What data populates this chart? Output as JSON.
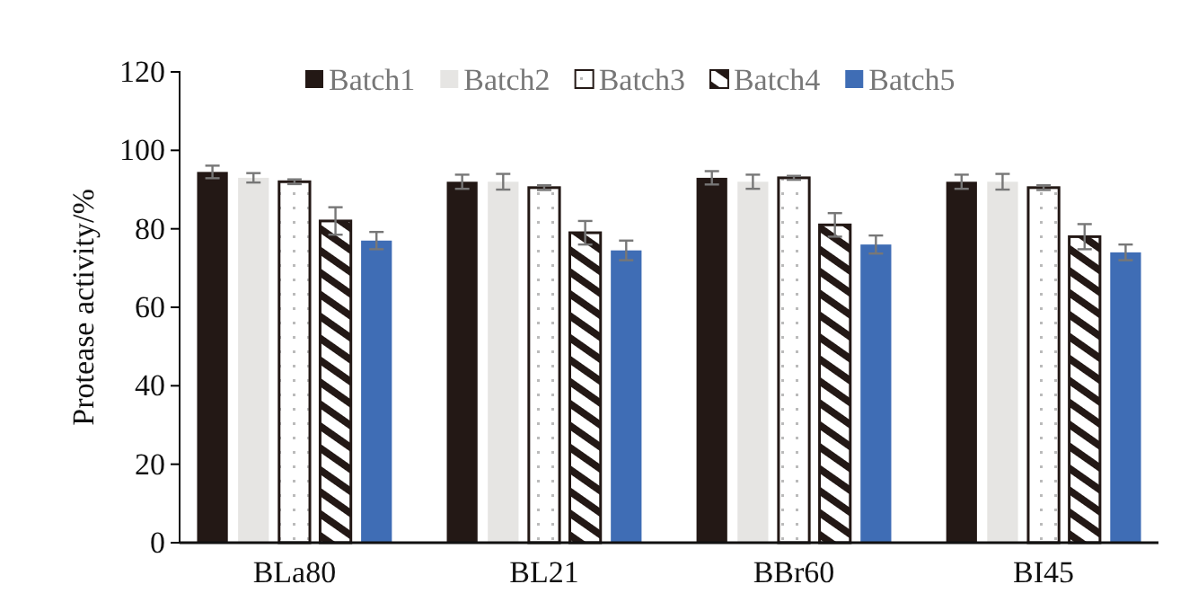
{
  "chart_data": {
    "type": "bar",
    "ylabel": "Protease activity/%",
    "categories": [
      "BLa80",
      "BL21",
      "BBr60",
      "BI45"
    ],
    "series": [
      {
        "name": "Batch1",
        "color": "#231815",
        "values": [
          94.5,
          92,
          93,
          92
        ],
        "errors": [
          1.6,
          1.8,
          1.7,
          1.8
        ]
      },
      {
        "name": "Batch2",
        "color": "#e6e5e3",
        "values": [
          93,
          92,
          92,
          92
        ],
        "errors": [
          1.2,
          2,
          1.8,
          2
        ]
      },
      {
        "name": "Batch3",
        "color": "#ffffff",
        "values": [
          92,
          90.5,
          93,
          90.5
        ],
        "errors": [
          0.6,
          0.6,
          0.5,
          0.6
        ]
      },
      {
        "name": "Batch4",
        "color": "#231815",
        "values": [
          82,
          79,
          81,
          78
        ],
        "errors": [
          3.5,
          3,
          3,
          3.2
        ]
      },
      {
        "name": "Batch5",
        "color": "#3f6db5",
        "values": [
          77,
          74.5,
          76,
          74
        ],
        "errors": [
          2.2,
          2.5,
          2.3,
          2
        ]
      }
    ],
    "ylim": [
      0,
      120
    ],
    "yticks": [
      0,
      20,
      40,
      60,
      80,
      100,
      120
    ],
    "grid": false,
    "legend": "top"
  }
}
